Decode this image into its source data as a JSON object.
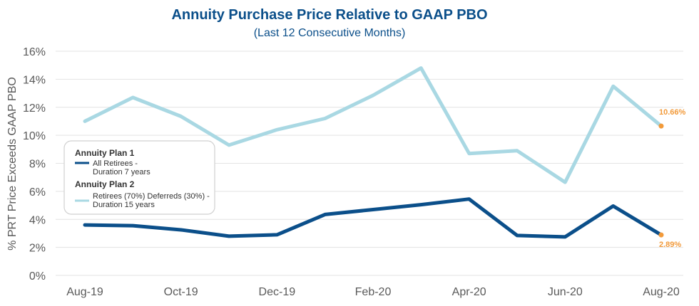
{
  "chart_data": {
    "type": "line",
    "title": "Annuity Purchase Price Relative to GAAP PBO",
    "subtitle": "(Last 12 Consecutive Months)",
    "ylabel": "% PRT Price Exceeds GAAP PBO",
    "xlabel": "",
    "ylim": [
      0,
      16
    ],
    "y_ticks": [
      "0%",
      "2%",
      "4%",
      "6%",
      "8%",
      "10%",
      "12%",
      "14%",
      "16%"
    ],
    "x": [
      "Aug-19",
      "Sep-19",
      "Oct-19",
      "Nov-19",
      "Dec-19",
      "Jan-20",
      "Feb-20",
      "Mar-20",
      "Apr-20",
      "May-20",
      "Jun-20",
      "Jul-20",
      "Aug-20"
    ],
    "x_tick_labels": [
      "Aug-19",
      "",
      "Oct-19",
      "",
      "Dec-19",
      "",
      "Feb-20",
      "",
      "Apr-20",
      "",
      "Jun-20",
      "",
      "Aug-20"
    ],
    "grid": true,
    "legend_position": "left-middle",
    "series": [
      {
        "name": "Annuity Plan 1",
        "legend_lines": [
          "All Retirees -",
          "Duration 7 years"
        ],
        "color": "#0b4f8a",
        "values": [
          3.6,
          3.55,
          3.25,
          2.8,
          2.9,
          4.35,
          4.7,
          5.05,
          5.45,
          2.85,
          2.75,
          4.95,
          2.89
        ],
        "end_label": "2.89%"
      },
      {
        "name": "Annuity Plan 2",
        "legend_lines": [
          "Retirees (70%) Deferreds (30%) -",
          "Duration 15 years"
        ],
        "color": "#a9d8e3",
        "values": [
          11.0,
          12.7,
          11.35,
          9.3,
          10.4,
          11.2,
          12.85,
          14.8,
          8.7,
          8.9,
          6.65,
          13.5,
          10.66
        ],
        "end_label": "10.66%"
      }
    ],
    "end_marker_color": "#f29a3a"
  }
}
